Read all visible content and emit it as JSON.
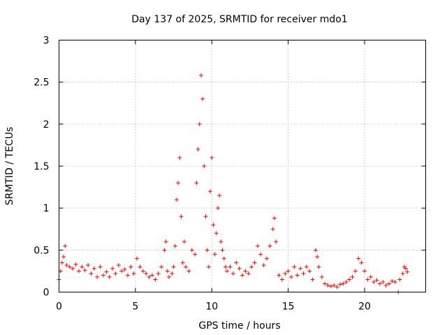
{
  "chart_data": {
    "type": "scatter",
    "title": "Day 137 of 2025, SRMTID for receiver mdo1",
    "xlabel": "GPS time / hours",
    "ylabel": "SRMTID / TECUs",
    "xlim": [
      0,
      24
    ],
    "ylim": [
      0,
      3
    ],
    "xticks": [
      0,
      5,
      10,
      15,
      20
    ],
    "yticks": [
      0,
      0.5,
      1,
      1.5,
      2,
      2.5,
      3
    ],
    "xtick_labels": [
      "0",
      "5",
      "10",
      "15",
      "20"
    ],
    "ytick_labels": [
      "0",
      "0.5",
      "1",
      "1.5",
      "2",
      "2.5",
      "3"
    ],
    "grid": true,
    "marker": "+",
    "series_color": "#ff0000",
    "series": [
      {
        "name": "SRMTID",
        "x": [
          0.0,
          0.1,
          0.2,
          0.3,
          0.4,
          0.5,
          0.7,
          0.9,
          1.1,
          1.3,
          1.5,
          1.7,
          1.9,
          2.1,
          2.3,
          2.5,
          2.7,
          2.9,
          3.1,
          3.3,
          3.5,
          3.7,
          3.9,
          4.1,
          4.3,
          4.5,
          4.7,
          4.9,
          5.1,
          5.3,
          5.5,
          5.7,
          5.9,
          6.1,
          6.3,
          6.5,
          6.7,
          6.9,
          7.0,
          7.1,
          7.2,
          7.4,
          7.5,
          7.6,
          7.7,
          7.8,
          7.9,
          8.0,
          8.1,
          8.2,
          8.3,
          8.5,
          8.7,
          8.9,
          9.0,
          9.1,
          9.2,
          9.3,
          9.4,
          9.5,
          9.6,
          9.7,
          9.8,
          9.9,
          10.0,
          10.1,
          10.2,
          10.3,
          10.4,
          10.5,
          10.6,
          10.7,
          10.8,
          10.9,
          11.0,
          11.2,
          11.4,
          11.6,
          11.8,
          12.0,
          12.2,
          12.4,
          12.6,
          12.8,
          13.0,
          13.2,
          13.4,
          13.6,
          13.8,
          14.0,
          14.1,
          14.2,
          14.4,
          14.6,
          14.8,
          15.0,
          15.2,
          15.4,
          15.6,
          15.8,
          16.0,
          16.2,
          16.4,
          16.6,
          16.8,
          16.9,
          17.0,
          17.2,
          17.4,
          17.6,
          17.8,
          18.0,
          18.2,
          18.4,
          18.6,
          18.8,
          19.0,
          19.2,
          19.4,
          19.6,
          19.8,
          20.0,
          20.2,
          20.4,
          20.6,
          20.8,
          21.0,
          21.2,
          21.4,
          21.6,
          21.8,
          22.0,
          22.2,
          22.3,
          22.5,
          22.6,
          22.7,
          22.8
        ],
        "y": [
          0.15,
          0.25,
          0.35,
          0.42,
          0.55,
          0.32,
          0.3,
          0.28,
          0.33,
          0.25,
          0.3,
          0.26,
          0.32,
          0.22,
          0.28,
          0.18,
          0.3,
          0.2,
          0.24,
          0.18,
          0.28,
          0.22,
          0.32,
          0.25,
          0.27,
          0.2,
          0.3,
          0.22,
          0.4,
          0.3,
          0.25,
          0.22,
          0.18,
          0.2,
          0.15,
          0.22,
          0.3,
          0.5,
          0.6,
          0.25,
          0.18,
          0.22,
          0.3,
          0.55,
          1.1,
          1.3,
          1.6,
          0.9,
          0.35,
          0.6,
          0.3,
          0.25,
          0.5,
          0.45,
          1.3,
          1.7,
          2.0,
          2.58,
          2.3,
          1.5,
          0.9,
          0.5,
          0.3,
          1.2,
          1.6,
          0.8,
          0.45,
          0.7,
          1.0,
          1.15,
          0.6,
          0.5,
          0.4,
          0.3,
          0.25,
          0.3,
          0.22,
          0.35,
          0.28,
          0.2,
          0.25,
          0.22,
          0.3,
          0.35,
          0.55,
          0.45,
          0.32,
          0.4,
          0.55,
          0.75,
          0.88,
          0.6,
          0.2,
          0.15,
          0.22,
          0.25,
          0.18,
          0.3,
          0.2,
          0.28,
          0.22,
          0.3,
          0.25,
          0.15,
          0.5,
          0.42,
          0.3,
          0.18,
          0.1,
          0.08,
          0.07,
          0.08,
          0.06,
          0.09,
          0.1,
          0.12,
          0.15,
          0.18,
          0.25,
          0.4,
          0.35,
          0.25,
          0.15,
          0.18,
          0.12,
          0.14,
          0.1,
          0.12,
          0.08,
          0.1,
          0.13,
          0.12,
          0.0,
          0.15,
          0.22,
          0.3,
          0.28,
          0.24
        ]
      }
    ]
  }
}
